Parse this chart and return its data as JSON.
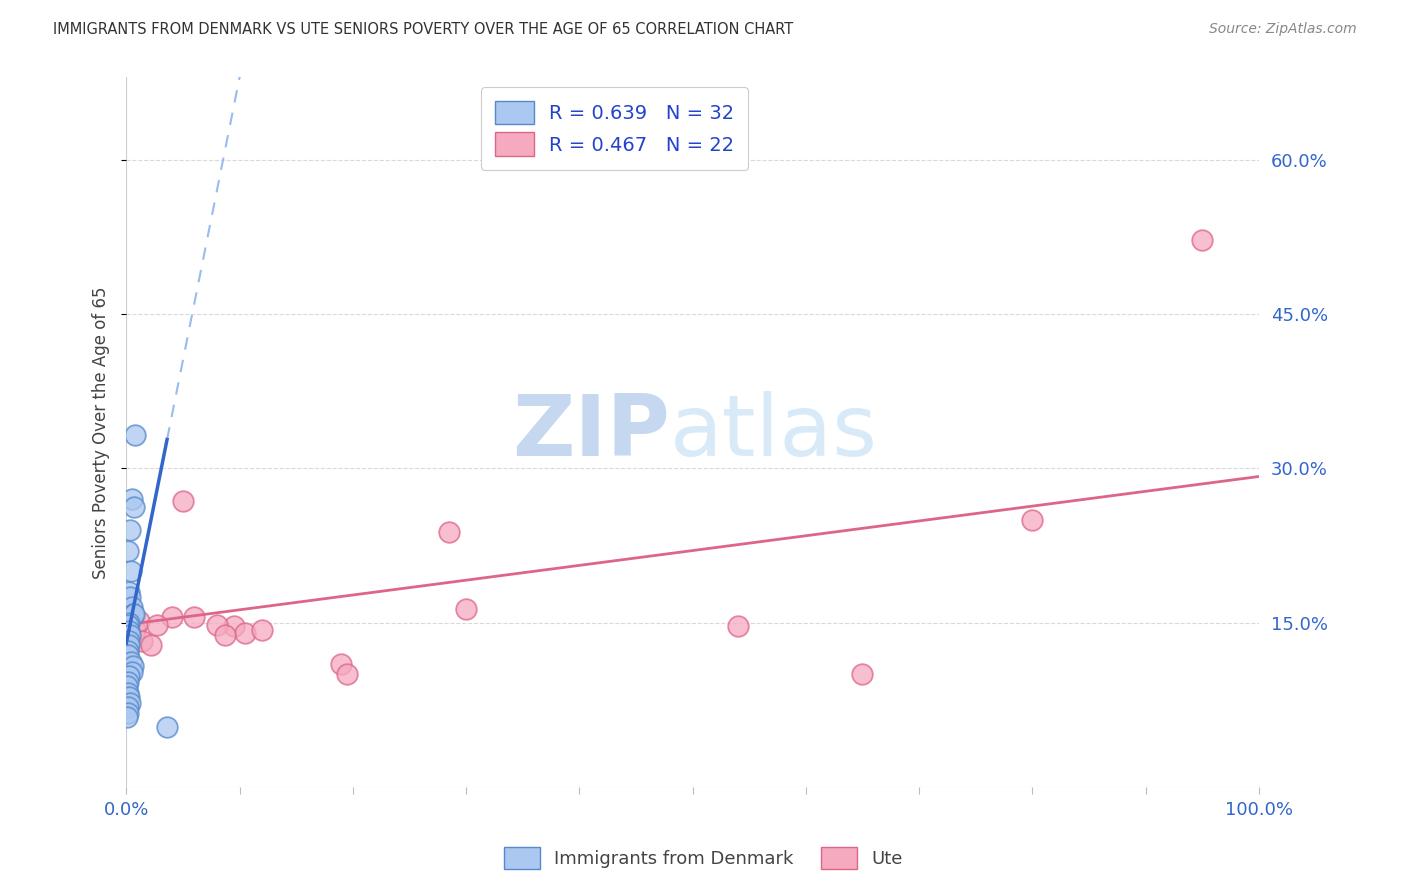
{
  "title": "IMMIGRANTS FROM DENMARK VS UTE SENIORS POVERTY OVER THE AGE OF 65 CORRELATION CHART",
  "source": "Source: ZipAtlas.com",
  "ylabel": "Seniors Poverty Over the Age of 65",
  "xlim": [
    0,
    100
  ],
  "ylim": [
    -0.01,
    0.68
  ],
  "y_ticks_right": [
    0.15,
    0.3,
    0.45,
    0.6
  ],
  "y_tick_labels_right": [
    "15.0%",
    "30.0%",
    "45.0%",
    "60.0%"
  ],
  "blue_scatter_x": [
    0.5,
    0.7,
    0.3,
    0.15,
    0.4,
    0.2,
    0.35,
    0.5,
    0.6,
    0.8,
    0.65,
    0.28,
    0.18,
    0.22,
    0.32,
    0.2,
    0.25,
    0.17,
    0.12,
    0.42,
    0.55,
    0.5,
    0.28,
    0.14,
    0.09,
    0.17,
    0.22,
    0.32,
    0.11,
    0.19,
    0.07,
    3.6
  ],
  "blue_scatter_y": [
    0.27,
    0.262,
    0.24,
    0.22,
    0.2,
    0.18,
    0.175,
    0.165,
    0.158,
    0.332,
    0.158,
    0.15,
    0.148,
    0.142,
    0.138,
    0.132,
    0.128,
    0.122,
    0.118,
    0.112,
    0.108,
    0.102,
    0.098,
    0.092,
    0.088,
    0.082,
    0.078,
    0.072,
    0.068,
    0.062,
    0.058,
    0.048
  ],
  "pink_scatter_x": [
    0.8,
    4.0,
    5.0,
    6.0,
    9.5,
    10.5,
    19.0,
    19.5,
    28.5,
    30.0,
    54.0,
    65.0,
    80.0,
    95.0,
    0.55,
    1.1,
    1.4,
    2.2,
    2.7,
    8.0,
    8.7,
    12.0
  ],
  "pink_scatter_y": [
    0.143,
    0.155,
    0.268,
    0.155,
    0.147,
    0.14,
    0.11,
    0.1,
    0.238,
    0.163,
    0.147,
    0.1,
    0.25,
    0.522,
    0.155,
    0.152,
    0.132,
    0.128,
    0.148,
    0.148,
    0.138,
    0.143
  ],
  "blue_line_intercept": 0.13,
  "blue_line_slope": 0.055,
  "pink_line_x1": 0.0,
  "pink_line_x2": 100.0,
  "pink_line_y1": 0.148,
  "pink_line_y2": 0.292,
  "blue_color": "#aac8f0",
  "blue_edge_color": "#5588cc",
  "blue_line_color": "#3366cc",
  "pink_color": "#f5aac0",
  "pink_edge_color": "#dd6688",
  "pink_line_color": "#dd6688",
  "dashed_color": "#99bbee",
  "grid_color": "#d8d8e0",
  "background_color": "#ffffff",
  "title_color": "#333333",
  "source_color": "#888888",
  "legend_label_color": "#2244cc",
  "axis_tick_color": "#3366cc"
}
